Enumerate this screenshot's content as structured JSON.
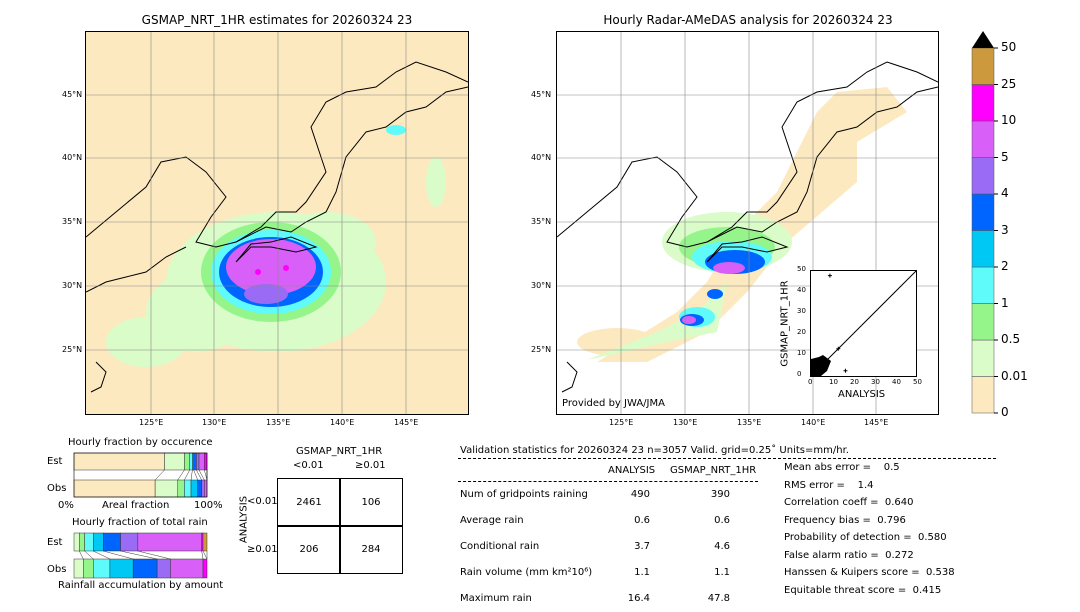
{
  "left_map": {
    "title": "GSMAP_NRT_1HR estimates for 20260324 23"
  },
  "right_map": {
    "title": "Hourly Radar-AMeDAS analysis for 20260324 23",
    "credit": "Provided by JWA/JMA"
  },
  "lat_labels": [
    "45°N",
    "40°N",
    "35°N",
    "30°N",
    "25°N"
  ],
  "lon_labels": [
    "125°E",
    "130°E",
    "135°E",
    "140°E",
    "145°E"
  ],
  "colorbar": {
    "labels": [
      "0",
      "0.01",
      "0.5",
      "1",
      "2",
      "3",
      "4",
      "5",
      "10",
      "25",
      "50"
    ],
    "colors": [
      "#fde9c0",
      "#d9fcc8",
      "#95f58b",
      "#5ffbfb",
      "#00c8f5",
      "#0064ff",
      "#9a6bf5",
      "#d860f8",
      "#ff00ff",
      "#cc9a3c"
    ]
  },
  "scatter": {
    "xlabel": "ANALYSIS",
    "ylabel": "GSMAP_NRT_1HR",
    "ticks": [
      "0",
      "10",
      "20",
      "30",
      "40",
      "50"
    ],
    "range": [
      0,
      50
    ],
    "outliers": [
      [
        9,
        47.8
      ],
      [
        16.4,
        2.5
      ],
      [
        13,
        13
      ]
    ]
  },
  "occurrence": {
    "title": "Hourly fraction by occurence",
    "xlabel": "Areal fraction",
    "left": "0%",
    "right": "100%",
    "rows": [
      "Est",
      "Obs"
    ],
    "est": [
      0.68,
      0.15,
      0.04,
      0.02,
      0.01,
      0.02,
      0.02,
      0.04,
      0.02
    ],
    "obs": [
      0.61,
      0.17,
      0.05,
      0.05,
      0.05,
      0.03,
      0.02,
      0.02,
      0.0
    ]
  },
  "total_rain": {
    "title": "Hourly fraction of total rain",
    "xlabel": "Rainfall accumulation by amount",
    "rows": [
      "Est",
      "Obs"
    ],
    "est": [
      0.04,
      0.04,
      0.065,
      0.075,
      0.13,
      0.13,
      0.48,
      0.01,
      0.03
    ],
    "obs": [
      0.07,
      0.075,
      0.125,
      0.175,
      0.18,
      0.1,
      0.245,
      0.03,
      0.0
    ]
  },
  "contingency": {
    "title": "GSMAP_NRT_1HR",
    "cols": [
      "<0.01",
      "≥0.01"
    ],
    "ylabel": "ANALYSIS",
    "rows": [
      "<0.01",
      "≥0.01"
    ],
    "values": [
      [
        "2461",
        "106"
      ],
      [
        "206",
        "284"
      ]
    ]
  },
  "stats": {
    "header": "Validation statistics for 20260324 23  n=3057 Valid. grid=0.25˚ Units=mm/hr.",
    "cols": [
      "ANALYSIS",
      "GSMAP_NRT_1HR"
    ],
    "rows": [
      [
        "Num of gridpoints raining",
        "490",
        "390"
      ],
      [
        "Average rain",
        "0.6",
        "0.6"
      ],
      [
        "Conditional rain",
        "3.7",
        "4.6"
      ],
      [
        "Rain volume (mm km²10⁶)",
        "1.1",
        "1.1"
      ],
      [
        "Maximum rain",
        "16.4",
        "47.8"
      ]
    ],
    "scores": [
      "Mean abs error =    0.5",
      "RMS error =    1.4",
      "Correlation coeff =  0.640",
      "Frequency bias =  0.796",
      "Probability of detection =  0.580",
      "False alarm ratio =  0.272",
      "Hanssen & Kuipers score =  0.538",
      "Equitable threat score =  0.415"
    ]
  }
}
